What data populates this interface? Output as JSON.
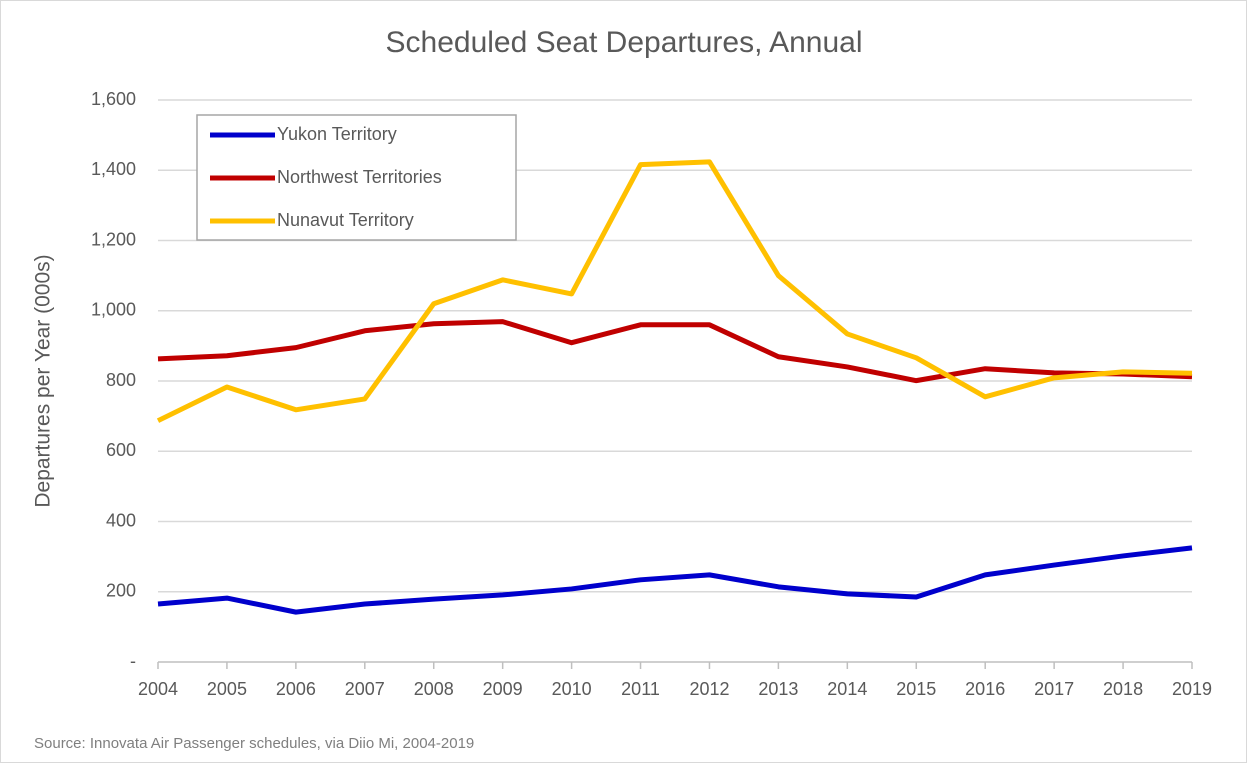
{
  "chart_data": {
    "type": "line",
    "title": "Scheduled Seat Departures, Annual",
    "y_label": "Departures per Year (000s)",
    "source": "Source: Innovata Air Passenger schedules, via Diio Mi, 2004-2019",
    "x": [
      2004,
      2005,
      2006,
      2007,
      2008,
      2009,
      2010,
      2011,
      2012,
      2013,
      2014,
      2015,
      2016,
      2017,
      2018,
      2019
    ],
    "xlim": [
      2004,
      2019
    ],
    "xticks": [
      2004,
      2005,
      2006,
      2007,
      2008,
      2009,
      2010,
      2011,
      2012,
      2013,
      2014,
      2015,
      2016,
      2017,
      2018,
      2019
    ],
    "ylim": [
      0,
      1600
    ],
    "yticks": [
      {
        "value": 0,
        "label": "-"
      },
      200,
      400,
      600,
      800,
      {
        "value": 1000,
        "label": "1,000"
      },
      {
        "value": 1200,
        "label": "1,200"
      },
      {
        "value": 1400,
        "label": "1,400"
      },
      {
        "value": 1600,
        "label": "1,600"
      }
    ],
    "grid": true,
    "legend": "upper left",
    "series": [
      {
        "name": "Yukon Territory",
        "color": "#0000cc",
        "values": [
          165,
          182,
          142,
          165,
          179,
          191,
          208,
          234,
          248,
          214,
          194,
          185,
          248,
          276,
          302,
          325
        ]
      },
      {
        "name": "Northwest Territories",
        "color": "#c00000",
        "values": [
          863,
          872,
          895,
          943,
          963,
          969,
          909,
          960,
          960,
          869,
          840,
          801,
          835,
          823,
          820,
          812
        ]
      },
      {
        "name": "Nunavut Territory",
        "color": "#ffc000",
        "values": [
          687,
          783,
          718,
          749,
          1020,
          1088,
          1048,
          1416,
          1424,
          1100,
          934,
          866,
          755,
          809,
          826,
          822
        ]
      }
    ]
  }
}
